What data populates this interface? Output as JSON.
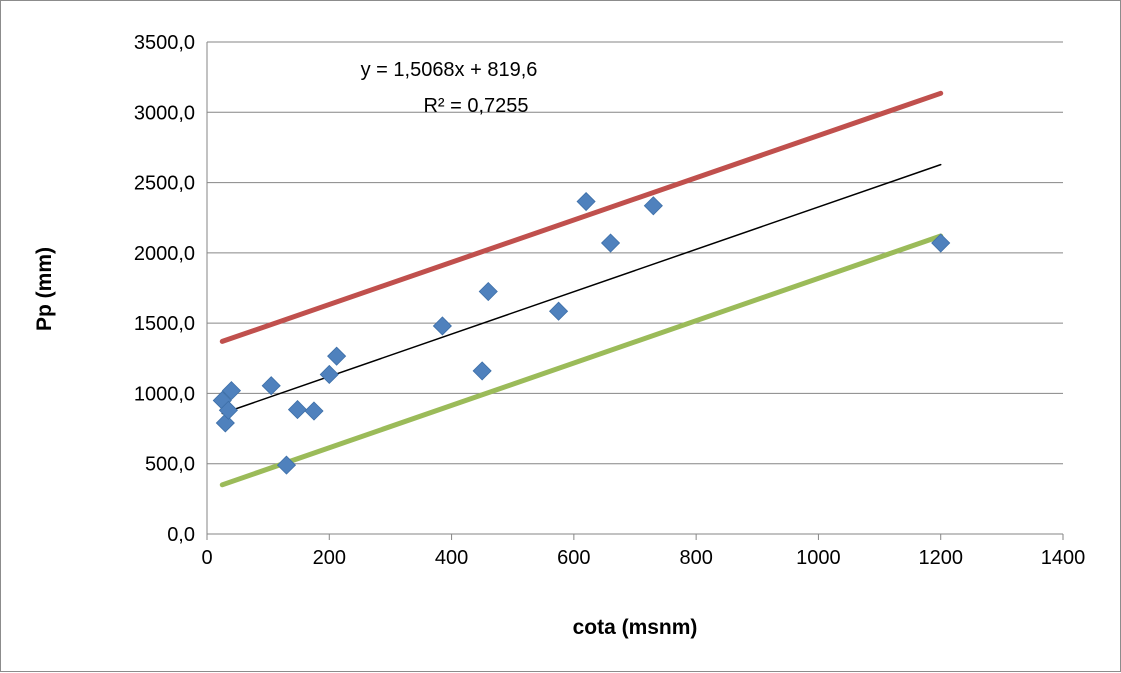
{
  "chart_data": {
    "type": "scatter",
    "xlabel": "cota (msnm)",
    "ylabel": "Pp (mm)",
    "xlim": [
      0,
      1400
    ],
    "ylim": [
      0,
      3500
    ],
    "x_ticks": [
      "0",
      "200",
      "400",
      "600",
      "800",
      "1000",
      "1200",
      "1400"
    ],
    "y_ticks": [
      "0,0",
      "500,0",
      "1000,0",
      "1500,0",
      "2000,0",
      "2500,0",
      "3000,0",
      "3500,0"
    ],
    "grid": "horizontal",
    "legend": "none",
    "series": [
      {
        "type": "scatter",
        "color": "#4f81bd",
        "marker": "diamond",
        "points": [
          {
            "x": 25,
            "y": 950
          },
          {
            "x": 30,
            "y": 790
          },
          {
            "x": 35,
            "y": 880
          },
          {
            "x": 40,
            "y": 1020
          },
          {
            "x": 105,
            "y": 1055
          },
          {
            "x": 130,
            "y": 490
          },
          {
            "x": 148,
            "y": 885
          },
          {
            "x": 175,
            "y": 875
          },
          {
            "x": 200,
            "y": 1135
          },
          {
            "x": 212,
            "y": 1265
          },
          {
            "x": 385,
            "y": 1480
          },
          {
            "x": 450,
            "y": 1160
          },
          {
            "x": 460,
            "y": 1725
          },
          {
            "x": 575,
            "y": 1585
          },
          {
            "x": 620,
            "y": 2365
          },
          {
            "x": 660,
            "y": 2070
          },
          {
            "x": 730,
            "y": 2335
          },
          {
            "x": 1200,
            "y": 2070
          }
        ]
      },
      {
        "type": "line",
        "color": "#000000",
        "width": 1.5,
        "points": [
          {
            "x": 25,
            "y": 857.3
          },
          {
            "x": 1200,
            "y": 2627.8
          }
        ]
      },
      {
        "type": "line",
        "color": "#c0504d",
        "width": 5,
        "points": [
          {
            "x": 25,
            "y": 1370
          },
          {
            "x": 1200,
            "y": 3135
          }
        ]
      },
      {
        "type": "line",
        "color": "#9bbb59",
        "width": 5,
        "points": [
          {
            "x": 25,
            "y": 350
          },
          {
            "x": 1200,
            "y": 2120
          }
        ]
      }
    ],
    "annotations": {
      "equation": "y = 1,5068x + 819,6",
      "r_squared": "R² = 0,7255"
    }
  }
}
